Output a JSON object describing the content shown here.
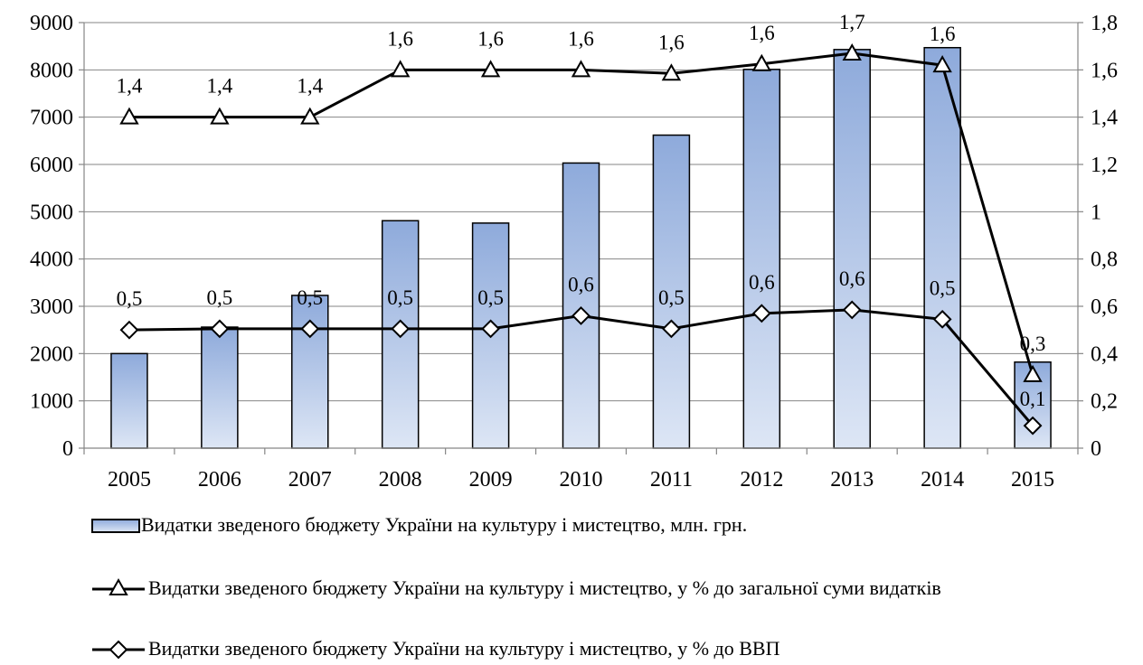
{
  "chart_data": {
    "type": "bar",
    "categories": [
      "2005",
      "2006",
      "2007",
      "2008",
      "2009",
      "2010",
      "2011",
      "2012",
      "2013",
      "2014",
      "2015"
    ],
    "series": [
      {
        "name": "Видатки зведеного бюджету України на культуру і мистецтво, млн. грн.",
        "type": "bar",
        "axis": "left",
        "values": [
          2000,
          2560,
          3230,
          4810,
          4760,
          6030,
          6620,
          8010,
          8430,
          8470,
          1820
        ],
        "data_labels": [
          "",
          "",
          "",
          "",
          "",
          "",
          "",
          "",
          "",
          "",
          ""
        ]
      },
      {
        "name": "Видатки зведеного бюджету України на культуру і мистецтво, у % до загальної суми видатків",
        "type": "line",
        "marker": "triangle",
        "axis": "right",
        "values": [
          1.4,
          1.4,
          1.4,
          1.6,
          1.6,
          1.6,
          1.585,
          1.625,
          1.67,
          1.62,
          0.31
        ],
        "data_labels": [
          "1,4",
          "1,4",
          "1,4",
          "1,6",
          "1,6",
          "1,6",
          "1,6",
          "1,6",
          "1,7",
          "1,6",
          "0,3"
        ]
      },
      {
        "name": "Видатки зведеного бюджету України на культуру і мистецтво, у % до ВВП",
        "type": "line",
        "marker": "diamond",
        "axis": "right",
        "values": [
          0.5,
          0.505,
          0.505,
          0.505,
          0.505,
          0.56,
          0.505,
          0.57,
          0.585,
          0.545,
          0.095
        ],
        "data_labels": [
          "0,5",
          "0,5",
          "0,5",
          "0,5",
          "0,5",
          "0,6",
          "0,5",
          "0,6",
          "0,6",
          "0,5",
          "0,1"
        ]
      }
    ],
    "y_left": {
      "min": 0,
      "max": 9000,
      "ticks": [
        "0",
        "1000",
        "2000",
        "3000",
        "4000",
        "5000",
        "6000",
        "7000",
        "8000",
        "9000"
      ]
    },
    "y_right": {
      "min": 0,
      "max": 1.8,
      "ticks": [
        "0",
        "0,2",
        "0,4",
        "0,6",
        "0,8",
        "1",
        "1,2",
        "1,4",
        "1,6",
        "1,8"
      ]
    },
    "grid": true,
    "legend_position": "bottom",
    "title": "",
    "xlabel": "",
    "ylabel": ""
  },
  "legend": {
    "bar_text": "Видатки зведеного бюджету України на культуру і мистецтво, млн. грн.",
    "triangle_text": "Видатки зведеного бюджету України на культуру і мистецтво, у % до загальної суми видатків",
    "diamond_text": "Видатки зведеного бюджету України на культуру і мистецтво, у % до ВВП"
  },
  "colors": {
    "bar_top": "#8eaadb",
    "bar_bottom": "#dde6f5",
    "line": "#000000",
    "grid": "#868686"
  }
}
